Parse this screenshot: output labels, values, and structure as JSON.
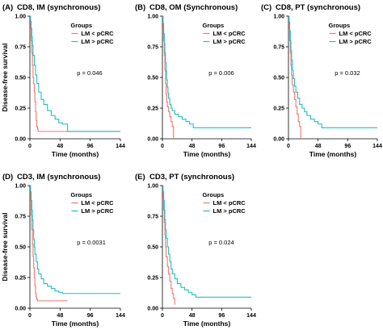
{
  "colors": {
    "lm_lt_pcrc": "#f0766f",
    "lm_gt_pcrc": "#1fbfc4"
  },
  "chart_data": [
    {
      "type": "line",
      "subtype": "kaplan-meier",
      "panel": "(A)",
      "title": "CD8, IM (synchronous)",
      "ylabel": "Disease-free survival",
      "xlabel": "Time (months)",
      "xlim": [
        0,
        144
      ],
      "ylim": [
        0,
        1
      ],
      "xticks": [
        "0",
        "48",
        "96",
        "144"
      ],
      "yticks": [
        "0.00",
        "0.25",
        "0.50",
        "0.75",
        "1.00"
      ],
      "legend_title": "Groups",
      "legend_position": "top-right",
      "annotation": "p = 0.046",
      "series": [
        {
          "name": "LM < pCRC",
          "color_key": "lm_lt_pcrc",
          "x": [
            0,
            1,
            2,
            3,
            4,
            5,
            6,
            7,
            8,
            9,
            10,
            11,
            12,
            13,
            144
          ],
          "y": [
            1.0,
            0.9,
            0.8,
            0.7,
            0.6,
            0.5,
            0.45,
            0.38,
            0.3,
            0.22,
            0.15,
            0.1,
            0.08,
            0.06,
            0.06
          ]
        },
        {
          "name": "LM > pCRC",
          "color_key": "lm_gt_pcrc",
          "x": [
            0,
            1,
            2,
            3,
            4,
            5,
            7,
            9,
            11,
            14,
            18,
            22,
            28,
            34,
            40,
            46,
            52,
            60,
            144
          ],
          "y": [
            1.0,
            0.96,
            0.9,
            0.83,
            0.76,
            0.68,
            0.6,
            0.52,
            0.45,
            0.38,
            0.32,
            0.28,
            0.23,
            0.19,
            0.16,
            0.13,
            0.12,
            0.06,
            0.06
          ]
        }
      ]
    },
    {
      "type": "line",
      "subtype": "kaplan-meier",
      "panel": "(B)",
      "title": "CD8, OM (Synchronous)",
      "ylabel": "",
      "xlabel": "Time (months)",
      "xlim": [
        0,
        144
      ],
      "ylim": [
        0,
        1
      ],
      "xticks": [
        "0",
        "48",
        "96",
        "144"
      ],
      "yticks": [
        "0.00",
        "0.25",
        "0.50",
        "0.75",
        "1.00"
      ],
      "legend_title": "Groups",
      "legend_position": "top-right",
      "annotation": "p = 0.006",
      "series": [
        {
          "name": "LM < pCRC",
          "color_key": "lm_lt_pcrc",
          "x": [
            0,
            1,
            2,
            3,
            4,
            5,
            6,
            7,
            8,
            10,
            12,
            14,
            16,
            18
          ],
          "y": [
            1.0,
            0.9,
            0.8,
            0.68,
            0.56,
            0.45,
            0.36,
            0.3,
            0.26,
            0.22,
            0.18,
            0.14,
            0.1,
            0.0
          ]
        },
        {
          "name": "LM > pCRC",
          "color_key": "lm_gt_pcrc",
          "x": [
            0,
            1,
            2,
            3,
            4,
            5,
            6,
            7,
            8,
            9,
            10,
            12,
            14,
            16,
            20,
            26,
            32,
            38,
            44,
            50,
            144
          ],
          "y": [
            1.0,
            0.94,
            0.86,
            0.78,
            0.7,
            0.62,
            0.55,
            0.48,
            0.42,
            0.37,
            0.33,
            0.28,
            0.25,
            0.23,
            0.2,
            0.18,
            0.16,
            0.14,
            0.12,
            0.09,
            0.09
          ]
        }
      ]
    },
    {
      "type": "line",
      "subtype": "kaplan-meier",
      "panel": "(C)",
      "title": "CD8, PT (synchronous)",
      "ylabel": "",
      "xlabel": "Time (months)",
      "xlim": [
        0,
        144
      ],
      "ylim": [
        0,
        1
      ],
      "xticks": [
        "0",
        "48",
        "96",
        "144"
      ],
      "yticks": [
        "0.00",
        "0.25",
        "0.50",
        "0.75",
        "1.00"
      ],
      "legend_title": "Groups",
      "legend_position": "top-right",
      "annotation": "p = 0.032",
      "series": [
        {
          "name": "LM < pCRC",
          "color_key": "lm_lt_pcrc",
          "x": [
            0,
            1,
            2,
            3,
            4,
            5,
            6,
            8,
            10,
            12,
            14,
            16,
            18,
            20
          ],
          "y": [
            1.0,
            0.9,
            0.8,
            0.7,
            0.6,
            0.52,
            0.44,
            0.38,
            0.32,
            0.26,
            0.2,
            0.14,
            0.1,
            0.0
          ]
        },
        {
          "name": "LM > pCRC",
          "color_key": "lm_gt_pcrc",
          "x": [
            0,
            1,
            2,
            3,
            4,
            5,
            6,
            8,
            10,
            12,
            15,
            18,
            22,
            26,
            30,
            36,
            42,
            48,
            54,
            144
          ],
          "y": [
            1.0,
            0.95,
            0.88,
            0.8,
            0.72,
            0.64,
            0.56,
            0.49,
            0.43,
            0.38,
            0.33,
            0.28,
            0.25,
            0.22,
            0.19,
            0.16,
            0.14,
            0.12,
            0.09,
            0.09
          ]
        }
      ]
    },
    {
      "type": "line",
      "subtype": "kaplan-meier",
      "panel": "(D)",
      "title": "CD3, IM (synchronous)",
      "ylabel": "Disease-free survival",
      "xlabel": "Time (months)",
      "xlim": [
        0,
        144
      ],
      "ylim": [
        0,
        1
      ],
      "xticks": [
        "0",
        "48",
        "96",
        "144"
      ],
      "yticks": [
        "0.00",
        "0.25",
        "0.50",
        "0.75",
        "1.00"
      ],
      "legend_title": "Groups",
      "legend_position": "top-right",
      "annotation": "p = 0.0031",
      "series": [
        {
          "name": "LM < pCRC",
          "color_key": "lm_lt_pcrc",
          "x": [
            0,
            1,
            2,
            3,
            4,
            5,
            6,
            7,
            8,
            9,
            10,
            11,
            12,
            60
          ],
          "y": [
            1.0,
            0.88,
            0.76,
            0.64,
            0.52,
            0.42,
            0.33,
            0.25,
            0.18,
            0.12,
            0.09,
            0.07,
            0.06,
            0.06
          ]
        },
        {
          "name": "LM > pCRC",
          "color_key": "lm_gt_pcrc",
          "x": [
            0,
            1,
            2,
            3,
            4,
            5,
            6,
            7,
            8,
            10,
            12,
            14,
            18,
            22,
            28,
            34,
            40,
            46,
            52,
            144
          ],
          "y": [
            1.0,
            0.95,
            0.88,
            0.8,
            0.72,
            0.64,
            0.56,
            0.5,
            0.44,
            0.38,
            0.32,
            0.28,
            0.24,
            0.2,
            0.18,
            0.16,
            0.14,
            0.13,
            0.12,
            0.12
          ]
        }
      ]
    },
    {
      "type": "line",
      "subtype": "kaplan-meier",
      "panel": "(E)",
      "title": "CD3, PT (synchronous)",
      "ylabel": "",
      "xlabel": "Time (months)",
      "xlim": [
        0,
        144
      ],
      "ylim": [
        0,
        1
      ],
      "xticks": [
        "0",
        "48",
        "96",
        "144"
      ],
      "yticks": [
        "0.00",
        "0.25",
        "0.50",
        "0.75",
        "1.00"
      ],
      "legend_title": "Groups",
      "legend_position": "top-right",
      "annotation": "p = 0.024",
      "series": [
        {
          "name": "LM < pCRC",
          "color_key": "lm_lt_pcrc",
          "x": [
            0,
            1,
            2,
            3,
            4,
            5,
            6,
            8,
            10,
            12,
            14,
            16,
            18,
            20
          ],
          "y": [
            1.0,
            0.9,
            0.8,
            0.7,
            0.6,
            0.5,
            0.42,
            0.34,
            0.28,
            0.22,
            0.16,
            0.12,
            0.08,
            0.03
          ]
        },
        {
          "name": "LM > pCRC",
          "color_key": "lm_gt_pcrc",
          "x": [
            0,
            1,
            2,
            3,
            4,
            5,
            6,
            8,
            10,
            12,
            14,
            16,
            20,
            24,
            30,
            36,
            42,
            48,
            54,
            144
          ],
          "y": [
            1.0,
            0.95,
            0.88,
            0.8,
            0.72,
            0.64,
            0.57,
            0.5,
            0.44,
            0.38,
            0.32,
            0.28,
            0.24,
            0.2,
            0.17,
            0.15,
            0.13,
            0.11,
            0.09,
            0.09
          ]
        }
      ]
    }
  ]
}
